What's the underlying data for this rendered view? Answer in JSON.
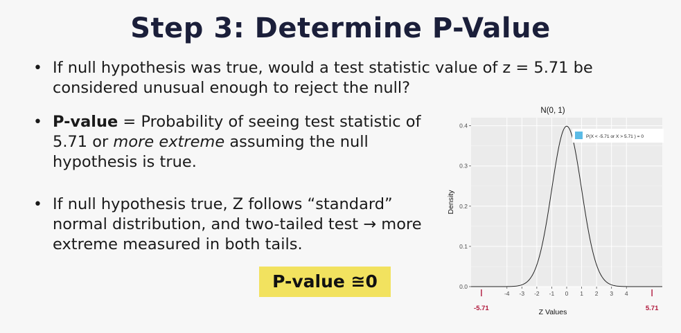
{
  "slide": {
    "title": "Step 3: Determine P-Value",
    "bullet1": "If null hypothesis was true, would a test statistic value of z = 5.71 be considered unusual enough to reject the null?",
    "bullet2_bold": "P-value",
    "bullet2_a": " = Probability of seeing test statistic of 5.71 or ",
    "bullet2_em": "more extreme",
    "bullet2_b": " assuming the null hypothesis is true.",
    "bullet3": "If null hypothesis true, Z follows “standard” normal distribution, and two-tailed test → more extreme measured in both tails.",
    "pvalue_box": "P-value ≅0",
    "highlight_color": "#f2e25f"
  },
  "chart_data": {
    "type": "line",
    "title": "N(0, 1)",
    "xlabel": "Z Values",
    "ylabel": "Density",
    "xlim": [
      -6.4,
      6.4
    ],
    "ylim": [
      0,
      0.42
    ],
    "x_ticks": [
      -4,
      -3,
      -2,
      -1,
      0,
      1,
      2,
      3,
      4
    ],
    "y_ticks": [
      0.0,
      0.1,
      0.2,
      0.3,
      0.4
    ],
    "y_tick_labels": [
      "0.0",
      "0.1",
      "0.2",
      "0.3",
      "0.4"
    ],
    "series": [
      {
        "distribution": "standard normal",
        "mean": 0,
        "sd": 1
      }
    ],
    "legend": {
      "label": "P(X < -5.71 or X > 5.71 ) = 0",
      "color": "#5bbbe6",
      "placement": "top-right"
    },
    "critical_values": [
      {
        "x": -5.71,
        "label": "-5.71"
      },
      {
        "x": 5.71,
        "label": "5.71"
      }
    ],
    "critical_color": "#b0163a",
    "grid": true,
    "panel_color": "#ebebeb"
  }
}
